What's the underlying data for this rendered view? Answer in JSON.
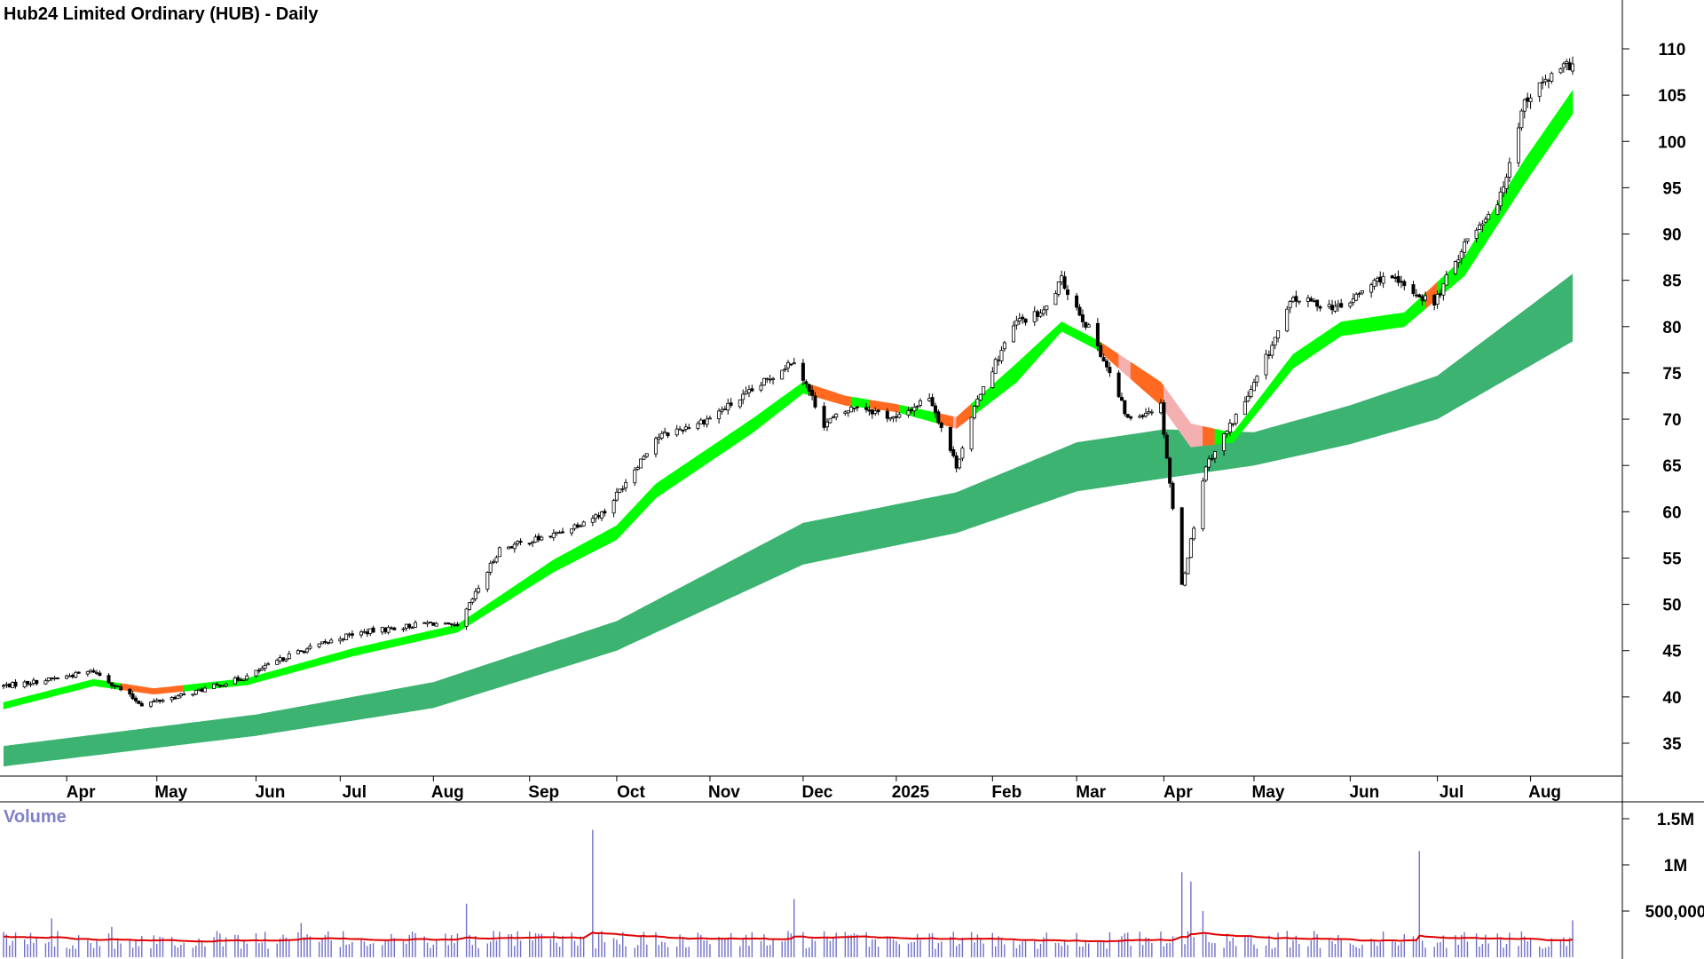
{
  "title": "Hub24 Limited Ordinary (HUB) - Daily",
  "volume_label": "Volume",
  "colors": {
    "long_band": "#3cb371",
    "short_band_up": "#00ff00",
    "short_band_down": "#ff6a20",
    "short_band_weak": "#f4b0b0",
    "candle": "#000000",
    "volume_bar": "#7070c8",
    "volume_avg": "#e00000"
  },
  "chart_data": [
    {
      "type": "candlestick",
      "title": "Hub24 Limited Ordinary (HUB) - Daily",
      "y_axis": {
        "position": "right",
        "range": [
          31,
          115
        ],
        "ticks": [
          35,
          40,
          45,
          50,
          55,
          60,
          65,
          70,
          75,
          80,
          85,
          90,
          95,
          100,
          105,
          110
        ]
      },
      "x_axis": {
        "start": "2024-03-11",
        "end": "2025-08-15",
        "labels": [
          {
            "text": "Apr",
            "date": "2024-04-01"
          },
          {
            "text": "May",
            "date": "2024-05-01"
          },
          {
            "text": "Jun",
            "date": "2024-06-03"
          },
          {
            "text": "Jul",
            "date": "2024-07-01"
          },
          {
            "text": "Aug",
            "date": "2024-08-01"
          },
          {
            "text": "Sep",
            "date": "2024-09-02"
          },
          {
            "text": "Oct",
            "date": "2024-10-01"
          },
          {
            "text": "Nov",
            "date": "2024-11-01"
          },
          {
            "text": "Dec",
            "date": "2024-12-02"
          },
          {
            "text": "2025",
            "date": "2025-01-02"
          },
          {
            "text": "Feb",
            "date": "2025-02-03"
          },
          {
            "text": "Mar",
            "date": "2025-03-03"
          },
          {
            "text": "Apr",
            "date": "2025-04-01"
          },
          {
            "text": "May",
            "date": "2025-05-01"
          },
          {
            "text": "Jun",
            "date": "2025-06-02"
          },
          {
            "text": "Jul",
            "date": "2025-07-01"
          },
          {
            "text": "Aug",
            "date": "2025-08-01"
          }
        ]
      },
      "price_path": [
        [
          "2024-03-11",
          41.2
        ],
        [
          "2024-03-25",
          41.8
        ],
        [
          "2024-04-10",
          42.8
        ],
        [
          "2024-04-26",
          39.2
        ],
        [
          "2024-05-10",
          40.2
        ],
        [
          "2024-05-31",
          42.2
        ],
        [
          "2024-06-14",
          44.5
        ],
        [
          "2024-07-05",
          46.8
        ],
        [
          "2024-07-31",
          48.0
        ],
        [
          "2024-08-09",
          47.5
        ],
        [
          "2024-08-23",
          56.0
        ],
        [
          "2024-09-10",
          57.5
        ],
        [
          "2024-09-27",
          60.0
        ],
        [
          "2024-10-14",
          68.0
        ],
        [
          "2024-10-31",
          70.0
        ],
        [
          "2024-11-15",
          73.0
        ],
        [
          "2024-11-29",
          76.5
        ],
        [
          "2024-12-09",
          69.5
        ],
        [
          "2024-12-20",
          71.5
        ],
        [
          "2025-01-02",
          70.0
        ],
        [
          "2025-01-13",
          72.5
        ],
        [
          "2025-01-22",
          65.0
        ],
        [
          "2025-01-30",
          73.0
        ],
        [
          "2025-02-11",
          80.5
        ],
        [
          "2025-02-20",
          81.5
        ],
        [
          "2025-02-26",
          85.0
        ],
        [
          "2025-03-10",
          78.0
        ],
        [
          "2025-03-20",
          70.0
        ],
        [
          "2025-03-31",
          71.5
        ],
        [
          "2025-04-07",
          52.0
        ],
        [
          "2025-04-15",
          65.0
        ],
        [
          "2025-04-30",
          73.0
        ],
        [
          "2025-05-14",
          83.0
        ],
        [
          "2025-05-30",
          82.0
        ],
        [
          "2025-06-13",
          85.5
        ],
        [
          "2025-06-30",
          82.5
        ],
        [
          "2025-07-10",
          89.0
        ],
        [
          "2025-07-22",
          94.0
        ],
        [
          "2025-07-30",
          104.5
        ],
        [
          "2025-08-06",
          106.5
        ],
        [
          "2025-08-15",
          108.5
        ]
      ],
      "short_term_band": [
        [
          "2024-03-11",
          38.7,
          39.4
        ],
        [
          "2024-04-10",
          41.2,
          41.9
        ],
        [
          "2024-04-30",
          40.3,
          40.9
        ],
        [
          "2024-05-31",
          41.3,
          42.0
        ],
        [
          "2024-07-05",
          44.4,
          45.2
        ],
        [
          "2024-08-09",
          47.0,
          47.8
        ],
        [
          "2024-09-10",
          53.5,
          54.8
        ],
        [
          "2024-10-01",
          57.0,
          58.5
        ],
        [
          "2024-10-14",
          61.5,
          63.0
        ],
        [
          "2024-11-15",
          68.5,
          70.0
        ],
        [
          "2024-12-02",
          72.8,
          74.0
        ],
        [
          "2024-12-16",
          71.5,
          72.5
        ],
        [
          "2025-01-02",
          70.8,
          71.6
        ],
        [
          "2025-01-22",
          69.0,
          70.2
        ],
        [
          "2025-02-11",
          74.0,
          76.0
        ],
        [
          "2025-02-26",
          79.5,
          80.5
        ],
        [
          "2025-03-10",
          77.5,
          78.5
        ],
        [
          "2025-03-31",
          71.5,
          74.0
        ],
        [
          "2025-04-10",
          67.0,
          69.5
        ],
        [
          "2025-04-24",
          67.5,
          68.5
        ],
        [
          "2025-05-14",
          75.5,
          77.0
        ],
        [
          "2025-05-30",
          79.0,
          80.5
        ],
        [
          "2025-06-20",
          80.0,
          81.5
        ],
        [
          "2025-07-10",
          85.5,
          87.5
        ],
        [
          "2025-07-30",
          95.5,
          98.0
        ],
        [
          "2025-08-15",
          103.0,
          105.5
        ]
      ],
      "long_term_band": [
        [
          "2024-03-11",
          32.5,
          34.7
        ],
        [
          "2024-06-03",
          35.8,
          38.1
        ],
        [
          "2024-08-01",
          38.8,
          41.6
        ],
        [
          "2024-10-01",
          45.0,
          48.2
        ],
        [
          "2024-12-02",
          54.3,
          58.8
        ],
        [
          "2025-01-22",
          57.7,
          62.1
        ],
        [
          "2025-03-03",
          62.2,
          67.5
        ],
        [
          "2025-04-01",
          63.6,
          68.9
        ],
        [
          "2025-05-01",
          65.0,
          68.6
        ],
        [
          "2025-06-02",
          67.3,
          71.5
        ],
        [
          "2025-07-01",
          70.0,
          74.7
        ],
        [
          "2025-08-15",
          78.4,
          85.7
        ]
      ]
    },
    {
      "type": "bar",
      "title": "Volume",
      "y_axis": {
        "position": "right",
        "ticks": [
          {
            "value": 500000,
            "label": "500,000"
          },
          {
            "value": 1000000,
            "label": "1M"
          },
          {
            "value": 1500000,
            "label": "1.5M"
          }
        ]
      },
      "typical_volume": 180000,
      "average_volume": 220000,
      "spikes": [
        [
          "2024-03-27",
          420000
        ],
        [
          "2024-04-16",
          330000
        ],
        [
          "2024-06-18",
          370000
        ],
        [
          "2024-08-12",
          580000
        ],
        [
          "2024-09-23",
          1380000
        ],
        [
          "2024-11-29",
          630000
        ],
        [
          "2025-04-07",
          920000
        ],
        [
          "2025-04-10",
          820000
        ],
        [
          "2025-04-14",
          500000
        ],
        [
          "2025-06-25",
          1150000
        ],
        [
          "2025-08-15",
          400000
        ]
      ]
    }
  ]
}
